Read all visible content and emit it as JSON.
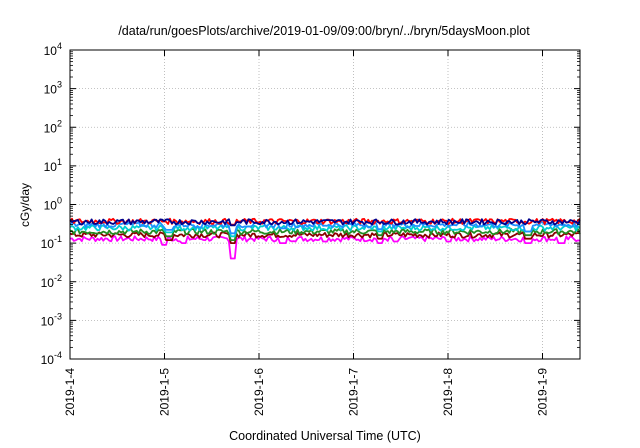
{
  "chart_data": {
    "type": "line",
    "title": "/data/run/goesPlots/archive/2019-01-09/09:00/bryn/../bryn/5daysMoon.plot",
    "xlabel": "Coordinated Universal Time (UTC)",
    "ylabel": "cGy/day",
    "y_scale": "log",
    "ylim": [
      0.0001,
      10000
    ],
    "y_ticks": [
      {
        "value": 0.0001,
        "base": "10",
        "exp": "-4"
      },
      {
        "value": 0.001,
        "base": "10",
        "exp": "-3"
      },
      {
        "value": 0.01,
        "base": "10",
        "exp": "-2"
      },
      {
        "value": 0.1,
        "base": "10",
        "exp": "-1"
      },
      {
        "value": 1,
        "base": "10",
        "exp": "0"
      },
      {
        "value": 10,
        "base": "10",
        "exp": "1"
      },
      {
        "value": 100,
        "base": "10",
        "exp": "2"
      },
      {
        "value": 1000,
        "base": "10",
        "exp": "3"
      },
      {
        "value": 10000,
        "base": "10",
        "exp": "4"
      }
    ],
    "xlim": [
      "2019-01-04",
      "2019-01-09T09:00"
    ],
    "x_ticks": [
      "2019-1-4",
      "2019-1-5",
      "2019-1-6",
      "2019-1-7",
      "2019-1-8",
      "2019-1-9"
    ],
    "grid": true,
    "series": [
      {
        "color": "#ff00ff",
        "base": 0.13,
        "dips": [
          [
            1.0,
            0.09
          ],
          [
            1.2,
            0.1
          ],
          [
            1.72,
            0.04
          ],
          [
            2.25,
            0.1
          ],
          [
            2.7,
            0.11
          ],
          [
            3.28,
            0.1
          ],
          [
            3.45,
            0.11
          ],
          [
            4.0,
            0.11
          ],
          [
            4.85,
            0.1
          ],
          [
            5.2,
            0.1
          ]
        ]
      },
      {
        "color": "#8b0000",
        "base": 0.165,
        "dips": [
          [
            1.05,
            0.12
          ],
          [
            1.72,
            0.1
          ],
          [
            3.28,
            0.13
          ],
          [
            4.85,
            0.13
          ]
        ]
      },
      {
        "color": "#228b22",
        "base": 0.2,
        "dips": [
          [
            1.05,
            0.15
          ],
          [
            1.72,
            0.12
          ],
          [
            3.28,
            0.16
          ],
          [
            4.85,
            0.16
          ]
        ]
      },
      {
        "color": "#00ced1",
        "base": 0.25,
        "dips": [
          [
            1.05,
            0.19
          ],
          [
            1.72,
            0.15
          ],
          [
            3.28,
            0.2
          ],
          [
            4.85,
            0.2
          ]
        ]
      },
      {
        "color": "#1e90ff",
        "base": 0.3,
        "dips": [
          [
            1.05,
            0.22
          ],
          [
            1.72,
            0.18
          ],
          [
            2.25,
            0.24
          ],
          [
            3.28,
            0.23
          ],
          [
            4.85,
            0.2
          ]
        ]
      },
      {
        "color": "#ff0000",
        "base": 0.37,
        "dips": [
          [
            1.72,
            0.3
          ]
        ]
      },
      {
        "color": "#00008b",
        "base": 0.36,
        "dips": [
          [
            1.72,
            0.29
          ]
        ]
      }
    ]
  }
}
